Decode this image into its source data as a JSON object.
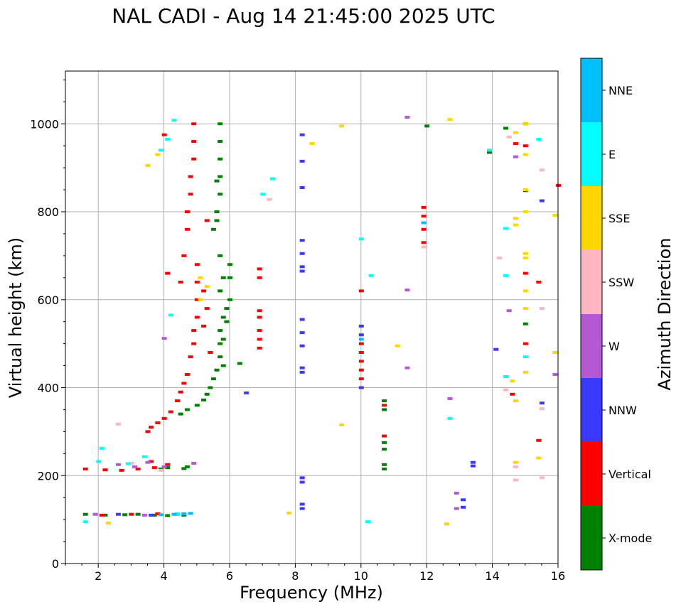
{
  "chart_data": {
    "type": "scatter",
    "title": "NAL CADI - Aug 14 21:45:00 2025 UTC",
    "xlabel": "Frequency (MHz)",
    "ylabel": "Virtual height (km)",
    "xlim": [
      1,
      16
    ],
    "ylim": [
      0,
      1120
    ],
    "xticks": [
      2,
      4,
      6,
      8,
      10,
      12,
      14,
      16
    ],
    "yticks": [
      0,
      200,
      400,
      600,
      800,
      1000
    ],
    "grid": true,
    "colorbar": {
      "title": "Azimuth Direction",
      "categories": [
        {
          "name": "X-mode",
          "color": "#008000"
        },
        {
          "name": "Vertical",
          "color": "#ff0000"
        },
        {
          "name": "NNW",
          "color": "#3a3aff"
        },
        {
          "name": "W",
          "color": "#b558d4"
        },
        {
          "name": "SSW",
          "color": "#ffb6c1"
        },
        {
          "name": "SSE",
          "color": "#ffd700"
        },
        {
          "name": "E",
          "color": "#00ffff"
        },
        {
          "name": "NNE",
          "color": "#00bfff"
        }
      ]
    },
    "series": [
      {
        "name": "X-mode",
        "points": [
          [
            1.6,
            112
          ],
          [
            2.2,
            110
          ],
          [
            2.8,
            111
          ],
          [
            3.2,
            112
          ],
          [
            3.7,
            110
          ],
          [
            4.1,
            109
          ],
          [
            4.6,
            110
          ],
          [
            3.9,
            215
          ],
          [
            4.1,
            218
          ],
          [
            4.6,
            216
          ],
          [
            4.7,
            220
          ],
          [
            4.5,
            340
          ],
          [
            4.7,
            350
          ],
          [
            5.0,
            360
          ],
          [
            5.2,
            372
          ],
          [
            5.3,
            385
          ],
          [
            5.4,
            400
          ],
          [
            5.5,
            420
          ],
          [
            5.6,
            440
          ],
          [
            5.7,
            470
          ],
          [
            5.7,
            500
          ],
          [
            5.7,
            530
          ],
          [
            5.8,
            560
          ],
          [
            5.9,
            580
          ],
          [
            6.0,
            600
          ],
          [
            6.0,
            650
          ],
          [
            6.0,
            680
          ],
          [
            5.7,
            620
          ],
          [
            5.8,
            650
          ],
          [
            5.7,
            700
          ],
          [
            5.5,
            760
          ],
          [
            5.6,
            800
          ],
          [
            5.7,
            840
          ],
          [
            5.7,
            880
          ],
          [
            5.7,
            920
          ],
          [
            5.7,
            960
          ],
          [
            5.7,
            1000
          ],
          [
            5.6,
            870
          ],
          [
            5.6,
            780
          ],
          [
            5.9,
            550
          ],
          [
            5.8,
            510
          ],
          [
            5.8,
            450
          ],
          [
            10.7,
            215
          ],
          [
            10.7,
            225
          ],
          [
            10.7,
            260
          ],
          [
            10.7,
            275
          ],
          [
            10.7,
            350
          ],
          [
            10.7,
            370
          ],
          [
            12.0,
            995
          ],
          [
            13.9,
            935
          ],
          [
            14.4,
            990
          ],
          [
            15.0,
            545
          ],
          [
            15.0,
            848
          ],
          [
            6.3,
            455
          ]
        ]
      },
      {
        "name": "Vertical",
        "points": [
          [
            1.6,
            215
          ],
          [
            2.2,
            213
          ],
          [
            2.7,
            212
          ],
          [
            3.2,
            215
          ],
          [
            3.7,
            218
          ],
          [
            4.1,
            225
          ],
          [
            3.6,
            232
          ],
          [
            2.1,
            110
          ],
          [
            3.0,
            112
          ],
          [
            3.8,
            113
          ],
          [
            3.5,
            300
          ],
          [
            3.6,
            310
          ],
          [
            3.8,
            320
          ],
          [
            4.0,
            330
          ],
          [
            4.2,
            345
          ],
          [
            4.4,
            370
          ],
          [
            4.5,
            390
          ],
          [
            4.6,
            410
          ],
          [
            4.7,
            430
          ],
          [
            4.8,
            470
          ],
          [
            4.9,
            500
          ],
          [
            4.9,
            530
          ],
          [
            5.0,
            560
          ],
          [
            5.0,
            600
          ],
          [
            5.0,
            640
          ],
          [
            5.0,
            680
          ],
          [
            4.5,
            640
          ],
          [
            4.6,
            700
          ],
          [
            4.7,
            760
          ],
          [
            4.7,
            800
          ],
          [
            4.8,
            840
          ],
          [
            4.8,
            880
          ],
          [
            4.9,
            920
          ],
          [
            4.9,
            960
          ],
          [
            4.9,
            1000
          ],
          [
            5.2,
            620
          ],
          [
            5.3,
            580
          ],
          [
            5.2,
            540
          ],
          [
            5.4,
            480
          ],
          [
            4.1,
            660
          ],
          [
            4.0,
            975
          ],
          [
            5.3,
            780
          ],
          [
            6.9,
            490
          ],
          [
            6.9,
            510
          ],
          [
            6.9,
            530
          ],
          [
            6.9,
            560
          ],
          [
            6.9,
            575
          ],
          [
            6.9,
            650
          ],
          [
            6.9,
            670
          ],
          [
            10.0,
            420
          ],
          [
            10.0,
            440
          ],
          [
            10.0,
            460
          ],
          [
            10.0,
            480
          ],
          [
            10.0,
            500
          ],
          [
            10.0,
            620
          ],
          [
            10.7,
            290
          ],
          [
            10.7,
            360
          ],
          [
            11.9,
            730
          ],
          [
            11.9,
            760
          ],
          [
            11.9,
            790
          ],
          [
            11.9,
            810
          ],
          [
            15.0,
            500
          ],
          [
            15.0,
            660
          ],
          [
            15.0,
            950
          ],
          [
            15.0,
            1000
          ],
          [
            14.6,
            385
          ],
          [
            15.4,
            640
          ],
          [
            15.4,
            280
          ],
          [
            16.0,
            860
          ],
          [
            14.7,
            955
          ]
        ]
      },
      {
        "name": "NNW",
        "points": [
          [
            2.6,
            112
          ],
          [
            3.6,
            110
          ],
          [
            8.2,
            975
          ],
          [
            8.2,
            915
          ],
          [
            8.2,
            855
          ],
          [
            8.2,
            735
          ],
          [
            8.2,
            705
          ],
          [
            8.2,
            675
          ],
          [
            8.2,
            665
          ],
          [
            8.2,
            555
          ],
          [
            8.2,
            525
          ],
          [
            8.2,
            495
          ],
          [
            8.2,
            445
          ],
          [
            8.2,
            435
          ],
          [
            8.2,
            195
          ],
          [
            8.2,
            185
          ],
          [
            8.2,
            135
          ],
          [
            8.2,
            125
          ],
          [
            10.0,
            400
          ],
          [
            10.0,
            520
          ],
          [
            10.0,
            540
          ],
          [
            6.5,
            388
          ],
          [
            13.4,
            230
          ],
          [
            13.4,
            222
          ],
          [
            13.1,
            145
          ],
          [
            13.1,
            128
          ],
          [
            14.1,
            487
          ],
          [
            15.5,
            365
          ],
          [
            15.5,
            825
          ]
        ]
      },
      {
        "name": "W",
        "points": [
          [
            1.9,
            112
          ],
          [
            2.6,
            225
          ],
          [
            3.1,
            220
          ],
          [
            3.5,
            230
          ],
          [
            4.0,
            220
          ],
          [
            3.4,
            110
          ],
          [
            4.4,
            112
          ],
          [
            4.9,
            228
          ],
          [
            11.4,
            1015
          ],
          [
            11.4,
            622
          ],
          [
            11.4,
            445
          ],
          [
            12.7,
            375
          ],
          [
            12.9,
            160
          ],
          [
            12.9,
            125
          ],
          [
            14.7,
            925
          ],
          [
            15.9,
            430
          ],
          [
            14.5,
            575
          ],
          [
            4.0,
            512
          ]
        ]
      },
      {
        "name": "SSW",
        "points": [
          [
            2.6,
            317
          ],
          [
            3.0,
            228
          ],
          [
            3.9,
            212
          ],
          [
            7.2,
            828
          ],
          [
            11.9,
            720
          ],
          [
            14.2,
            695
          ],
          [
            14.4,
            395
          ],
          [
            14.7,
            220
          ],
          [
            14.7,
            190
          ],
          [
            15.5,
            895
          ],
          [
            15.5,
            580
          ],
          [
            15.5,
            352
          ],
          [
            15.5,
            195
          ],
          [
            14.5,
            970
          ]
        ]
      },
      {
        "name": "SSE",
        "points": [
          [
            2.3,
            92
          ],
          [
            3.5,
            905
          ],
          [
            3.8,
            930
          ],
          [
            5.1,
            650
          ],
          [
            5.1,
            600
          ],
          [
            5.3,
            630
          ],
          [
            8.5,
            955
          ],
          [
            9.4,
            995
          ],
          [
            9.4,
            315
          ],
          [
            7.8,
            115
          ],
          [
            11.1,
            495
          ],
          [
            12.7,
            1010
          ],
          [
            12.6,
            90
          ],
          [
            14.7,
            980
          ],
          [
            14.7,
            785
          ],
          [
            14.7,
            770
          ],
          [
            14.7,
            230
          ],
          [
            14.7,
            370
          ],
          [
            15.0,
            1000
          ],
          [
            15.0,
            620
          ],
          [
            15.0,
            705
          ],
          [
            15.0,
            695
          ],
          [
            15.0,
            580
          ],
          [
            15.0,
            435
          ],
          [
            15.0,
            850
          ],
          [
            15.0,
            800
          ],
          [
            15.4,
            240
          ],
          [
            15.9,
            480
          ],
          [
            15.9,
            792
          ],
          [
            14.6,
            415
          ],
          [
            15.0,
            930
          ]
        ]
      },
      {
        "name": "E",
        "points": [
          [
            1.6,
            95
          ],
          [
            2.1,
            262
          ],
          [
            2.9,
            227
          ],
          [
            3.9,
            940
          ],
          [
            4.1,
            965
          ],
          [
            4.3,
            1008
          ],
          [
            4.2,
            565
          ],
          [
            4.4,
            113
          ],
          [
            7.3,
            875
          ],
          [
            7.0,
            840
          ],
          [
            10.2,
            95
          ],
          [
            10.3,
            655
          ],
          [
            10.0,
            738
          ],
          [
            12.7,
            330
          ],
          [
            13.9,
            940
          ],
          [
            14.4,
            425
          ],
          [
            14.4,
            655
          ],
          [
            14.4,
            762
          ],
          [
            15.0,
            470
          ],
          [
            15.4,
            965
          ],
          [
            3.4,
            243
          ],
          [
            2.0,
            232
          ]
        ]
      },
      {
        "name": "NNE",
        "points": [
          [
            4.3,
            112
          ],
          [
            4.6,
            113
          ],
          [
            4.8,
            114
          ],
          [
            3.9,
            111
          ],
          [
            10.0,
            510
          ],
          [
            11.9,
            775
          ]
        ]
      }
    ]
  }
}
